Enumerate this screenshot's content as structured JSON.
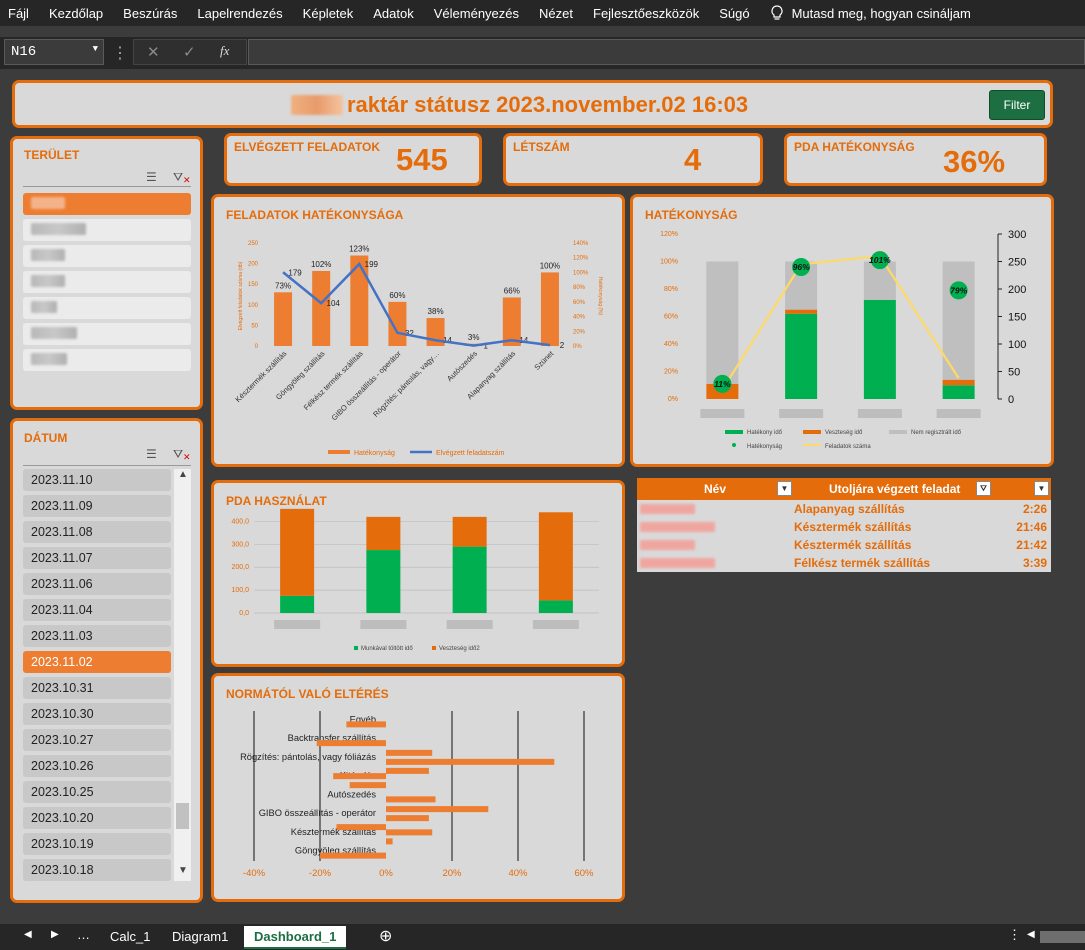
{
  "menu": [
    "Fájl",
    "Kezdőlap",
    "Beszúrás",
    "Lapelrendezés",
    "Képletek",
    "Adatok",
    "Véleményezés",
    "Nézet",
    "Fejlesztőeszközök",
    "Súgó"
  ],
  "tell_me": "Mutasd meg, hogyan csináljam",
  "name_box": "N16",
  "header": {
    "title": "raktár státusz 2023.november.02 16:03",
    "filter_label": "Filter"
  },
  "kpis": [
    {
      "label": "ELVÉGZETT FELADATOK",
      "value": "545"
    },
    {
      "label": "LÉTSZÁM",
      "value": "4"
    },
    {
      "label": "PDA HATÉKONYSÁG",
      "value": "36%"
    }
  ],
  "terulet": {
    "title": "TERÜLET"
  },
  "datum": {
    "title": "DÁTUM",
    "dates": [
      "2023.11.10",
      "2023.11.09",
      "2023.11.08",
      "2023.11.07",
      "2023.11.06",
      "2023.11.04",
      "2023.11.03",
      "2023.11.02",
      "2023.10.31",
      "2023.10.30",
      "2023.10.27",
      "2023.10.26",
      "2023.10.25",
      "2023.10.20",
      "2023.10.19",
      "2023.10.18"
    ],
    "selected": "2023.11.02"
  },
  "colors": {
    "accent": "#e46c0a",
    "bar_orange": "#ed7d31",
    "green": "#00b050",
    "gray": "#bfbfbf",
    "line_blue": "#4472c4",
    "line_yellow": "#ffd966",
    "excel_green": "#1d6f42"
  },
  "chart_data": [
    {
      "title": "FELADATOK HATÉKONYSÁGA",
      "type": "bar",
      "categories": [
        "Késztermék szállítás",
        "Göngyöleg szállítás",
        "Félkész termék szállítás",
        "GIBO összeállítás - operátor",
        "Rögzítés: pántolás, vagy…",
        "Autószedés",
        "Alapanyag szállítás",
        "Szünet"
      ],
      "series": [
        {
          "name": "Hatékonyság",
          "type": "bar",
          "values": [
            73,
            102,
            123,
            60,
            38,
            3,
            66,
            100
          ],
          "labels": [
            "73%",
            "102%",
            "123%",
            "60%",
            "38%",
            "3%",
            "66%",
            "100%"
          ]
        },
        {
          "name": "Elvégzett feladatszám",
          "type": "line",
          "values": [
            179,
            104,
            199,
            32,
            14,
            1,
            14,
            2
          ]
        }
      ],
      "ylabel": "Elvégzett feladatok száma (db)",
      "y2label": "Hatékonyság (%)",
      "yticks": [
        "0",
        "50",
        "100",
        "150",
        "200",
        "250"
      ],
      "y2ticks": [
        "0%",
        "20%",
        "40%",
        "60%",
        "80%",
        "100%",
        "120%",
        "140%"
      ]
    },
    {
      "title": "HATÉKONYSÁG",
      "type": "bar",
      "stacked": true,
      "categories": [
        "",
        "",
        "",
        ""
      ],
      "series": [
        {
          "name": "Hatékony idő",
          "values": [
            0,
            62,
            72,
            10
          ]
        },
        {
          "name": "Veszteség idő",
          "values": [
            11,
            3,
            0,
            4
          ]
        },
        {
          "name": "Nem regisztrált idő",
          "values": [
            89,
            35,
            28,
            86
          ]
        },
        {
          "name": "Hatékonyság",
          "type": "scatter",
          "values": [
            11,
            96,
            101,
            79
          ],
          "labels": [
            "11%",
            "96%",
            "101%",
            "79%"
          ]
        },
        {
          "name": "Feladatok száma",
          "type": "line",
          "values": [
            17,
            245,
            260,
            38
          ]
        }
      ],
      "yticks": [
        "0%",
        "20%",
        "40%",
        "60%",
        "80%",
        "100%",
        "120%"
      ],
      "y2ticks": [
        "0",
        "50",
        "100",
        "150",
        "200",
        "250",
        "300"
      ]
    },
    {
      "title": "PDA HASZNÁLAT",
      "type": "bar",
      "stacked": true,
      "categories": [
        "",
        "",
        "",
        ""
      ],
      "series": [
        {
          "name": "Munkával töltött idő",
          "values": [
            75,
            275,
            290,
            55
          ]
        },
        {
          "name": "Veszteség idő2",
          "values": [
            380,
            145,
            130,
            385
          ]
        }
      ],
      "yticks": [
        "0,0",
        "100,0",
        "200,0",
        "300,0",
        "400,0"
      ]
    },
    {
      "title": "NORMÁTÓL VALÓ ELTÉRÉS",
      "type": "bar",
      "orientation": "horizontal",
      "categories": [
        "Egyéb",
        "Backtransfer szállítás",
        "Rögzítés: pántolás, vagy fóliázás",
        "Kitárolás",
        "Autószedés",
        "GIBO összeállítás - operátor",
        "Késztermék szállítás",
        "Göngyöleg szállítás"
      ],
      "rows": [
        {
          "cat": 0,
          "value": -12
        },
        {
          "cat": 1,
          "value": -21
        },
        {
          "cat": 2,
          "value": 14
        },
        {
          "cat": 2,
          "value": 51
        },
        {
          "cat": 2,
          "value": 13
        },
        {
          "cat": 3,
          "value": -16
        },
        {
          "cat": 3,
          "value": -11
        },
        {
          "cat": 4,
          "value": 15
        },
        {
          "cat": 5,
          "value": 31
        },
        {
          "cat": 5,
          "value": 13
        },
        {
          "cat": 5,
          "value": -15
        },
        {
          "cat": 6,
          "value": 14
        },
        {
          "cat": 6,
          "value": 2
        },
        {
          "cat": 7,
          "value": -20
        }
      ],
      "xticks": [
        "-40%",
        "-20%",
        "0%",
        "20%",
        "40%",
        "60%"
      ],
      "xlim": [
        -40,
        60
      ]
    }
  ],
  "table": {
    "headers": [
      "Név",
      "Utoljára végzett feladat"
    ],
    "rows": [
      {
        "task": "Alapanyag szállítás",
        "time": "2:26"
      },
      {
        "task": "Késztermék szállítás",
        "time": "21:46"
      },
      {
        "task": "Késztermék szállítás",
        "time": "21:42"
      },
      {
        "task": "Félkész termék szállítás",
        "time": "3:39"
      }
    ]
  },
  "tabs": [
    "Calc_1",
    "Diagram1",
    "Dashboard_1"
  ],
  "active_tab": "Dashboard_1"
}
